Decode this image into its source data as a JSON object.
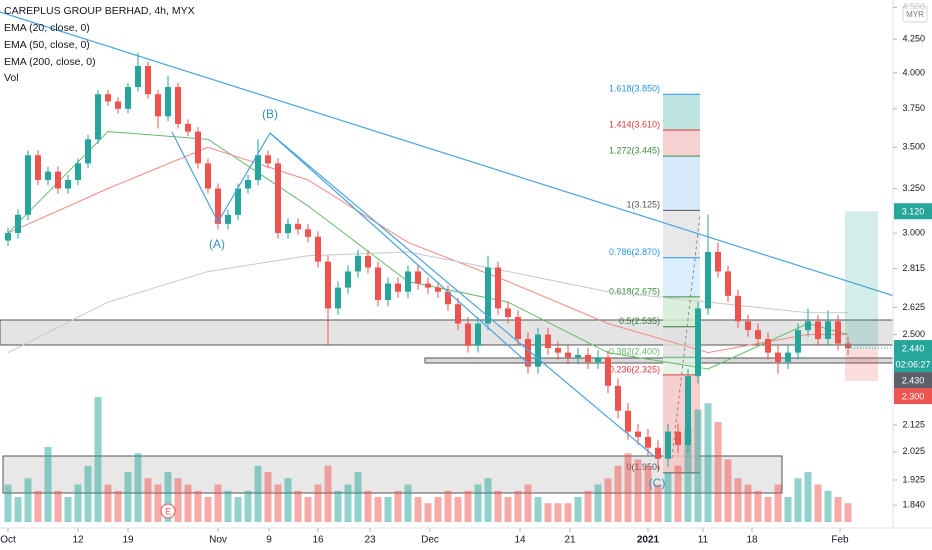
{
  "chart_data": {
    "type": "candlestick",
    "title": "CAREPLUS GROUP BERHAD, 4h, MYX",
    "indicators": [
      "EMA (20, close, 0)",
      "EMA (50, close, 0)",
      "EMA (200, close, 0)",
      "Vol"
    ],
    "currency": "MYR",
    "log_scale": true,
    "ylim": [
      1.766,
      4.56
    ],
    "yticks": [
      {
        "value": 4.5,
        "label": "4.500"
      },
      {
        "value": 4.25,
        "label": "4.250"
      },
      {
        "value": 4.0,
        "label": "4.000"
      },
      {
        "value": 3.75,
        "label": "3.750"
      },
      {
        "value": 3.5,
        "label": "3.500"
      },
      {
        "value": 3.25,
        "label": "3.250"
      },
      {
        "value": 3.0,
        "label": "3.000"
      },
      {
        "value": 2.815,
        "label": "2.815"
      },
      {
        "value": 2.625,
        "label": "2.625"
      },
      {
        "value": 2.5,
        "label": "2.500"
      },
      {
        "value": 2.125,
        "label": "2.125"
      },
      {
        "value": 2.025,
        "label": "2.025"
      },
      {
        "value": 1.925,
        "label": "1.925"
      },
      {
        "value": 1.84,
        "label": "1.840"
      }
    ],
    "xticks": [
      {
        "value": 0,
        "label": "Oct"
      },
      {
        "value": 7,
        "label": "12"
      },
      {
        "value": 12,
        "label": "19"
      },
      {
        "value": 21,
        "label": "Nov"
      },
      {
        "value": 26.1,
        "label": "9"
      },
      {
        "value": 31,
        "label": "16"
      },
      {
        "value": 36.2,
        "label": "23"
      },
      {
        "value": 42.2,
        "label": "Dec"
      },
      {
        "value": 51.2,
        "label": "14"
      },
      {
        "value": 56.2,
        "label": "21"
      },
      {
        "value": 64,
        "label": "2021"
      },
      {
        "value": 69.5,
        "label": "11"
      },
      {
        "value": 74.4,
        "label": "18"
      },
      {
        "value": 83.2,
        "label": "Feb"
      }
    ],
    "up_color": "#26a69a",
    "down_color": "#ef5350",
    "ohlc": [
      [
        2.96,
        3.03,
        2.93,
        3.0
      ],
      [
        3.0,
        3.13,
        2.97,
        3.1
      ],
      [
        3.1,
        3.48,
        3.07,
        3.45
      ],
      [
        3.45,
        3.48,
        3.27,
        3.3
      ],
      [
        3.3,
        3.38,
        3.27,
        3.35
      ],
      [
        3.35,
        3.38,
        3.22,
        3.25
      ],
      [
        3.25,
        3.33,
        3.22,
        3.3
      ],
      [
        3.3,
        3.43,
        3.27,
        3.4
      ],
      [
        3.4,
        3.58,
        3.37,
        3.55
      ],
      [
        3.55,
        3.88,
        3.52,
        3.85
      ],
      [
        3.85,
        3.88,
        3.77,
        3.8
      ],
      [
        3.8,
        3.83,
        3.72,
        3.75
      ],
      [
        3.75,
        3.93,
        3.72,
        3.9
      ],
      [
        3.9,
        4.15,
        3.87,
        4.05
      ],
      [
        4.05,
        4.08,
        3.82,
        3.85
      ],
      [
        3.85,
        3.88,
        3.62,
        3.7
      ],
      [
        3.7,
        3.98,
        3.67,
        3.9
      ],
      [
        3.9,
        3.93,
        3.62,
        3.65
      ],
      [
        3.65,
        3.68,
        3.57,
        3.6
      ],
      [
        3.6,
        3.63,
        3.37,
        3.4
      ],
      [
        3.4,
        3.43,
        3.22,
        3.25
      ],
      [
        3.25,
        3.28,
        3.02,
        3.05
      ],
      [
        3.05,
        3.13,
        3.02,
        3.1
      ],
      [
        3.1,
        3.28,
        3.07,
        3.25
      ],
      [
        3.25,
        3.33,
        3.22,
        3.3
      ],
      [
        3.3,
        3.55,
        3.27,
        3.45
      ],
      [
        3.45,
        3.48,
        3.37,
        3.4
      ],
      [
        3.4,
        3.43,
        2.97,
        3.0
      ],
      [
        3.0,
        3.08,
        2.97,
        3.05
      ],
      [
        3.05,
        3.08,
        2.99,
        3.02
      ],
      [
        3.02,
        3.05,
        2.95,
        2.98
      ],
      [
        2.98,
        3.01,
        2.82,
        2.85
      ],
      [
        2.85,
        2.88,
        2.45,
        2.62
      ],
      [
        2.62,
        2.75,
        2.59,
        2.72
      ],
      [
        2.72,
        2.83,
        2.69,
        2.8
      ],
      [
        2.8,
        2.91,
        2.77,
        2.88
      ],
      [
        2.88,
        2.91,
        2.79,
        2.82
      ],
      [
        2.82,
        2.85,
        2.63,
        2.66
      ],
      [
        2.66,
        2.77,
        2.63,
        2.74
      ],
      [
        2.74,
        2.77,
        2.67,
        2.7
      ],
      [
        2.7,
        2.83,
        2.67,
        2.8
      ],
      [
        2.8,
        2.83,
        2.71,
        2.74
      ],
      [
        2.74,
        2.77,
        2.69,
        2.72
      ],
      [
        2.72,
        2.75,
        2.67,
        2.7
      ],
      [
        2.7,
        2.73,
        2.61,
        2.64
      ],
      [
        2.64,
        2.67,
        2.52,
        2.55
      ],
      [
        2.55,
        2.58,
        2.42,
        2.45
      ],
      [
        2.45,
        2.58,
        2.42,
        2.55
      ],
      [
        2.55,
        2.88,
        2.52,
        2.82
      ],
      [
        2.82,
        2.85,
        2.59,
        2.62
      ],
      [
        2.62,
        2.65,
        2.55,
        2.58
      ],
      [
        2.58,
        2.61,
        2.45,
        2.48
      ],
      [
        2.48,
        2.51,
        2.33,
        2.36
      ],
      [
        2.36,
        2.53,
        2.33,
        2.5
      ],
      [
        2.5,
        2.53,
        2.41,
        2.44
      ],
      [
        2.44,
        2.47,
        2.39,
        2.42
      ],
      [
        2.42,
        2.45,
        2.37,
        2.4
      ],
      [
        2.4,
        2.44,
        2.37,
        2.41
      ],
      [
        2.41,
        2.44,
        2.35,
        2.38
      ],
      [
        2.38,
        2.43,
        2.35,
        2.4
      ],
      [
        2.4,
        2.43,
        2.25,
        2.28
      ],
      [
        2.28,
        2.31,
        2.15,
        2.18
      ],
      [
        2.18,
        2.21,
        2.07,
        2.1
      ],
      [
        2.1,
        2.13,
        2.05,
        2.08
      ],
      [
        2.08,
        2.11,
        2.01,
        2.04
      ],
      [
        2.04,
        2.07,
        1.96,
        2.0
      ],
      [
        2.0,
        2.13,
        1.97,
        2.1
      ],
      [
        2.1,
        2.13,
        2.02,
        2.05
      ],
      [
        2.05,
        2.35,
        2.02,
        2.32
      ],
      [
        2.32,
        2.65,
        2.29,
        2.62
      ],
      [
        2.62,
        3.1,
        2.59,
        2.9
      ],
      [
        2.9,
        2.95,
        2.77,
        2.8
      ],
      [
        2.8,
        2.83,
        2.65,
        2.68
      ],
      [
        2.68,
        2.71,
        2.53,
        2.56
      ],
      [
        2.56,
        2.59,
        2.49,
        2.52
      ],
      [
        2.52,
        2.55,
        2.45,
        2.48
      ],
      [
        2.48,
        2.51,
        2.39,
        2.42
      ],
      [
        2.42,
        2.45,
        2.33,
        2.38
      ],
      [
        2.38,
        2.45,
        2.35,
        2.42
      ],
      [
        2.42,
        2.55,
        2.39,
        2.52
      ],
      [
        2.52,
        2.62,
        2.49,
        2.56
      ],
      [
        2.56,
        2.59,
        2.45,
        2.48
      ],
      [
        2.48,
        2.61,
        2.45,
        2.56
      ],
      [
        2.56,
        2.59,
        2.43,
        2.46
      ],
      [
        2.46,
        2.49,
        2.41,
        2.44
      ]
    ],
    "volume": [
      30,
      20,
      35,
      25,
      60,
      25,
      20,
      30,
      45,
      100,
      30,
      25,
      40,
      55,
      35,
      30,
      40,
      35,
      30,
      25,
      20,
      30,
      25,
      20,
      25,
      45,
      40,
      30,
      35,
      25,
      20,
      30,
      45,
      25,
      30,
      40,
      25,
      20,
      20,
      25,
      30,
      20,
      15,
      20,
      25,
      20,
      25,
      30,
      35,
      25,
      20,
      25,
      30,
      20,
      15,
      15,
      15,
      20,
      25,
      30,
      35,
      45,
      55,
      50,
      45,
      30,
      40,
      45,
      75,
      90,
      95,
      80,
      50,
      35,
      30,
      25,
      20,
      30,
      20,
      35,
      40,
      30,
      25,
      20,
      15
    ],
    "ema": [
      {
        "name": "EMA (20, close, 0)",
        "color": "#66bb6a",
        "index": [
          0,
          10,
          20,
          30,
          40,
          50,
          60,
          70,
          80,
          84
        ],
        "values": [
          3.0,
          3.6,
          3.55,
          3.15,
          2.75,
          2.65,
          2.42,
          2.35,
          2.55,
          2.5
        ]
      },
      {
        "name": "EMA (50, close, 0)",
        "color": "#f28b82",
        "index": [
          0,
          10,
          20,
          30,
          40,
          50,
          60,
          70,
          80,
          84
        ],
        "values": [
          3.0,
          3.25,
          3.5,
          3.3,
          2.95,
          2.75,
          2.55,
          2.42,
          2.5,
          2.5
        ]
      },
      {
        "name": "EMA (200, close, 0)",
        "color": "#c8c8c8",
        "index": [
          0,
          10,
          20,
          30,
          40,
          50,
          60,
          70,
          80,
          84
        ],
        "values": [
          2.42,
          2.65,
          2.8,
          2.88,
          2.9,
          2.8,
          2.7,
          2.65,
          2.6,
          2.6
        ]
      }
    ],
    "fib_levels": [
      {
        "label": "1.618(3.850)",
        "value": 3.85,
        "color": "#2196f3",
        "band": "#b2dfdb"
      },
      {
        "label": "1.414(3.610)",
        "value": 3.61,
        "color": "#e53935",
        "band": "#f3c9c9"
      },
      {
        "label": "1.272(3.445)",
        "value": 3.445,
        "color": "#388e3c",
        "band": "#cfe6fb"
      },
      {
        "label": "1(3.125)",
        "value": 3.125,
        "color": "#555555",
        "band": "#e4e4e4"
      },
      {
        "label": "0.786(2.870)",
        "value": 2.87,
        "color": "#2196f3",
        "band": "#d6ebfb"
      },
      {
        "label": "0.618(2.675)",
        "value": 2.675,
        "color": "#388e3c",
        "band": "#d4ecd6"
      },
      {
        "label": "0.5(2.535)",
        "value": 2.535,
        "color": "#2e7d32",
        "band": "#e0e0e0"
      },
      {
        "label": "0.382(2.400)",
        "value": 2.4,
        "color": "#66bb6a",
        "band": "#e3f1e4"
      },
      {
        "label": "0.236(2.325)",
        "value": 2.325,
        "color": "#e53935",
        "band": "#f6c7c7"
      },
      {
        "label": "0(1.950)",
        "value": 1.95,
        "color": "#555555",
        "band": null
      }
    ],
    "price_tags": [
      {
        "value": 3.12,
        "label": "3.120",
        "color": "#26a69a"
      },
      {
        "value": 2.44,
        "label": "2.440",
        "color": "#26a69a"
      },
      {
        "value": 2.44,
        "label": "02:06:27",
        "color": "#26a69a"
      },
      {
        "value": 2.43,
        "label": "2.430",
        "color": "#5d606b"
      },
      {
        "value": 2.3,
        "label": "2.300",
        "color": "#ef5350"
      }
    ],
    "annotations": [
      "(A)",
      "(B)",
      "(C)",
      "E"
    ]
  }
}
